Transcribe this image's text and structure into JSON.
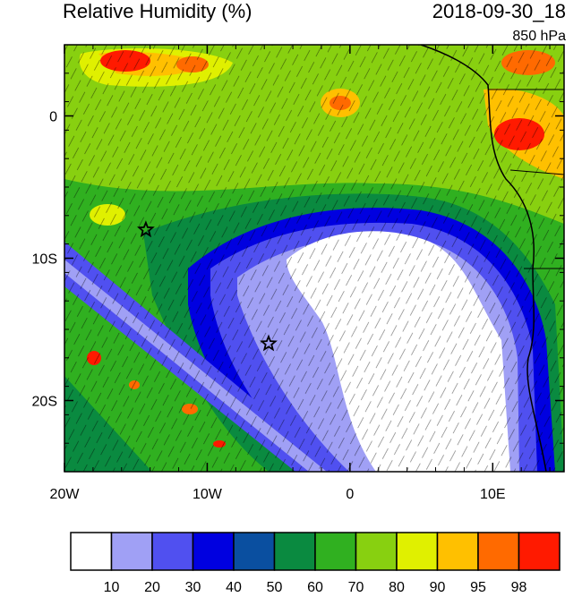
{
  "header": {
    "title": "Relative Humidity (%)",
    "datetime": "2018-09-30_18",
    "level": "850 hPa"
  },
  "map": {
    "lon_range": [
      -20,
      15
    ],
    "lat_range": [
      -25,
      5
    ],
    "x_ticks": [
      {
        "value": -20,
        "label": "20W"
      },
      {
        "value": -10,
        "label": "10W"
      },
      {
        "value": 0,
        "label": "0"
      },
      {
        "value": 10,
        "label": "10E"
      }
    ],
    "y_ticks": [
      {
        "value": 0,
        "label": "0"
      },
      {
        "value": -10,
        "label": "10S"
      },
      {
        "value": -20,
        "label": "20S"
      }
    ],
    "markers": [
      {
        "lon": -14.3,
        "lat": -8.0,
        "symbol": "star"
      },
      {
        "lon": -5.7,
        "lat": -16.0,
        "symbol": "star"
      }
    ]
  },
  "colorbar": {
    "colors": [
      "#ffffff",
      "#a0a0f5",
      "#5050f0",
      "#0000e0",
      "#0a4fa0",
      "#0a8a40",
      "#30b020",
      "#88d010",
      "#e0f000",
      "#ffc000",
      "#ff6a00",
      "#ff1a00"
    ],
    "labels": [
      "10",
      "20",
      "30",
      "40",
      "50",
      "60",
      "70",
      "80",
      "90",
      "95",
      "98"
    ]
  }
}
